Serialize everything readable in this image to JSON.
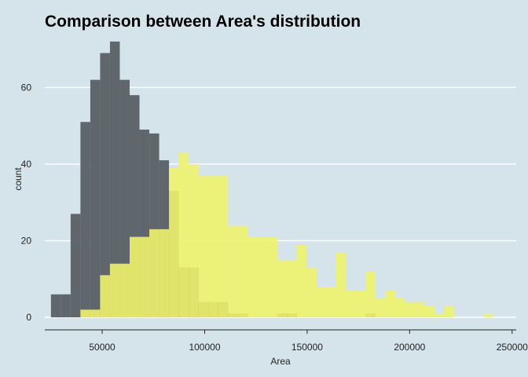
{
  "chart_data": {
    "type": "bar",
    "title": "Comparison between Area's distribution",
    "xlabel": "Area",
    "ylabel": "count",
    "xlim": [
      22000,
      252000
    ],
    "ylim": [
      0,
      73
    ],
    "xticks": [
      50000,
      100000,
      150000,
      200000,
      250000
    ],
    "xtick_labels": [
      "50000",
      "100000",
      "150000",
      "200000",
      "250000"
    ],
    "yticks": [
      0,
      20,
      40,
      60
    ],
    "ytick_labels": [
      "0",
      "20",
      "40",
      "60"
    ],
    "grid": "horizontal",
    "legend": "none",
    "bin_width": 4800,
    "series": [
      {
        "color": "#5f676c",
        "bins": [
          {
            "x0": 25000,
            "x1": 29800,
            "count": 6
          },
          {
            "x0": 29800,
            "x1": 34600,
            "count": 6
          },
          {
            "x0": 34600,
            "x1": 39400,
            "count": 27
          },
          {
            "x0": 39400,
            "x1": 44200,
            "count": 51
          },
          {
            "x0": 44200,
            "x1": 49000,
            "count": 62
          },
          {
            "x0": 49000,
            "x1": 53800,
            "count": 69
          },
          {
            "x0": 53800,
            "x1": 58600,
            "count": 72
          },
          {
            "x0": 58600,
            "x1": 63400,
            "count": 62
          },
          {
            "x0": 63400,
            "x1": 68200,
            "count": 58
          },
          {
            "x0": 68200,
            "x1": 73000,
            "count": 49
          },
          {
            "x0": 73000,
            "x1": 77800,
            "count": 48
          },
          {
            "x0": 77800,
            "x1": 82600,
            "count": 41
          },
          {
            "x0": 82600,
            "x1": 87400,
            "count": 33
          },
          {
            "x0": 87400,
            "x1": 92200,
            "count": 13
          },
          {
            "x0": 92200,
            "x1": 97000,
            "count": 13
          },
          {
            "x0": 97000,
            "x1": 101800,
            "count": 4
          },
          {
            "x0": 101800,
            "x1": 106600,
            "count": 4
          },
          {
            "x0": 106600,
            "x1": 111400,
            "count": 4
          },
          {
            "x0": 111400,
            "x1": 116200,
            "count": 1
          },
          {
            "x0": 116200,
            "x1": 121000,
            "count": 1
          },
          {
            "x0": 135400,
            "x1": 140200,
            "count": 1
          },
          {
            "x0": 140200,
            "x1": 145000,
            "count": 1
          },
          {
            "x0": 178600,
            "x1": 183400,
            "count": 1
          }
        ]
      },
      {
        "color": "#eef26a",
        "opacity": 0.9,
        "bins": [
          {
            "x0": 39400,
            "x1": 44200,
            "count": 2
          },
          {
            "x0": 44200,
            "x1": 49000,
            "count": 2
          },
          {
            "x0": 49000,
            "x1": 53800,
            "count": 11
          },
          {
            "x0": 53800,
            "x1": 58600,
            "count": 14
          },
          {
            "x0": 58600,
            "x1": 63400,
            "count": 14
          },
          {
            "x0": 63400,
            "x1": 68200,
            "count": 21
          },
          {
            "x0": 68200,
            "x1": 73000,
            "count": 21
          },
          {
            "x0": 73000,
            "x1": 77800,
            "count": 23
          },
          {
            "x0": 77800,
            "x1": 82600,
            "count": 23
          },
          {
            "x0": 82600,
            "x1": 87400,
            "count": 39
          },
          {
            "x0": 87400,
            "x1": 92200,
            "count": 43
          },
          {
            "x0": 92200,
            "x1": 97000,
            "count": 40
          },
          {
            "x0": 97000,
            "x1": 101800,
            "count": 37
          },
          {
            "x0": 101800,
            "x1": 106600,
            "count": 37
          },
          {
            "x0": 106600,
            "x1": 111400,
            "count": 37
          },
          {
            "x0": 111400,
            "x1": 116200,
            "count": 24
          },
          {
            "x0": 116200,
            "x1": 121000,
            "count": 24
          },
          {
            "x0": 121000,
            "x1": 125800,
            "count": 21
          },
          {
            "x0": 125800,
            "x1": 130600,
            "count": 21
          },
          {
            "x0": 130600,
            "x1": 135400,
            "count": 21
          },
          {
            "x0": 135400,
            "x1": 140200,
            "count": 15
          },
          {
            "x0": 140200,
            "x1": 145000,
            "count": 15
          },
          {
            "x0": 145000,
            "x1": 149800,
            "count": 19
          },
          {
            "x0": 149800,
            "x1": 154600,
            "count": 13
          },
          {
            "x0": 154600,
            "x1": 159400,
            "count": 8
          },
          {
            "x0": 159400,
            "x1": 164200,
            "count": 8
          },
          {
            "x0": 164200,
            "x1": 169000,
            "count": 17
          },
          {
            "x0": 169000,
            "x1": 173800,
            "count": 7
          },
          {
            "x0": 173800,
            "x1": 178600,
            "count": 7
          },
          {
            "x0": 178600,
            "x1": 183400,
            "count": 12
          },
          {
            "x0": 183400,
            "x1": 188200,
            "count": 5
          },
          {
            "x0": 188200,
            "x1": 193000,
            "count": 7
          },
          {
            "x0": 193000,
            "x1": 197800,
            "count": 5
          },
          {
            "x0": 197800,
            "x1": 202600,
            "count": 4
          },
          {
            "x0": 202600,
            "x1": 207400,
            "count": 4
          },
          {
            "x0": 207400,
            "x1": 212200,
            "count": 3
          },
          {
            "x0": 212200,
            "x1": 217000,
            "count": 1
          },
          {
            "x0": 217000,
            "x1": 221800,
            "count": 3
          },
          {
            "x0": 236200,
            "x1": 241000,
            "count": 1
          }
        ]
      }
    ]
  }
}
